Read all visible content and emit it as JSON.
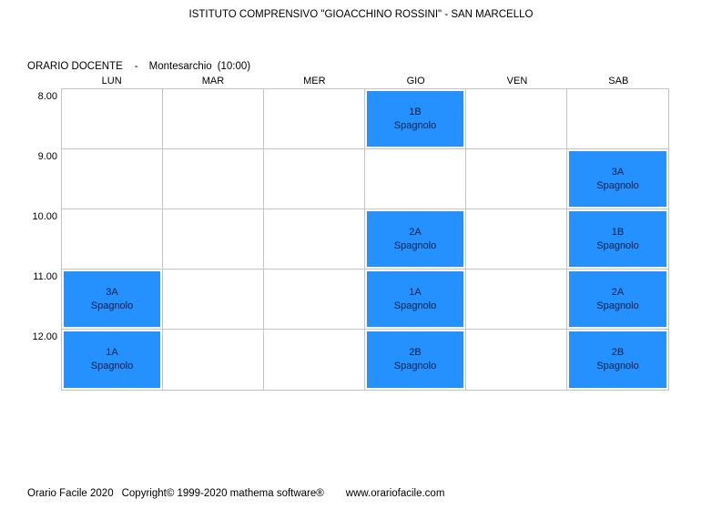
{
  "header": {
    "title": "ISTITUTO COMPRENSIVO \"GIOACCHINO ROSSINI\" - SAN MARCELLO"
  },
  "subtitle": {
    "label": "ORARIO DOCENTE",
    "separator": "-",
    "name": "Montesarchio",
    "detail": "(10:00)"
  },
  "timetable": {
    "days": [
      "LUN",
      "MAR",
      "MER",
      "GIO",
      "VEN",
      "SAB"
    ],
    "times": [
      "8.00",
      "9.00",
      "10.00",
      "11.00",
      "12.00"
    ],
    "entries": [
      {
        "time": "8.00",
        "day": "GIO",
        "class": "1B",
        "subject": "Spagnolo"
      },
      {
        "time": "9.00",
        "day": "SAB",
        "class": "3A",
        "subject": "Spagnolo"
      },
      {
        "time": "10.00",
        "day": "GIO",
        "class": "2A",
        "subject": "Spagnolo"
      },
      {
        "time": "10.00",
        "day": "SAB",
        "class": "1B",
        "subject": "Spagnolo"
      },
      {
        "time": "11.00",
        "day": "LUN",
        "class": "3A",
        "subject": "Spagnolo"
      },
      {
        "time": "11.00",
        "day": "GIO",
        "class": "1A",
        "subject": "Spagnolo"
      },
      {
        "time": "11.00",
        "day": "SAB",
        "class": "2A",
        "subject": "Spagnolo"
      },
      {
        "time": "12.00",
        "day": "LUN",
        "class": "1A",
        "subject": "Spagnolo"
      },
      {
        "time": "12.00",
        "day": "GIO",
        "class": "2B",
        "subject": "Spagnolo"
      },
      {
        "time": "12.00",
        "day": "SAB",
        "class": "2B",
        "subject": "Spagnolo"
      }
    ]
  },
  "colors": {
    "lesson_fill": "#2491FF",
    "grid_line": "#C4C4C4"
  },
  "footer": {
    "app": "Orario Facile 2020",
    "copyright": "Copyright© 1999-2020 mathema software®",
    "website": "www.orariofacile.com"
  }
}
